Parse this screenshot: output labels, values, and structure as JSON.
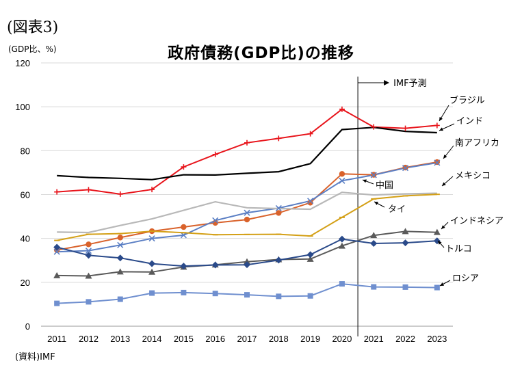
{
  "figure_label": "(図表3)",
  "unit_label": "(GDP比、%)",
  "source_label": "(資料)IMF",
  "chart_data": {
    "type": "line",
    "title": "政府債務(GDP比)の推移",
    "xlabel": "",
    "ylabel": "(GDP比、%)",
    "ylim": [
      0,
      120
    ],
    "yticks": [
      0,
      20,
      40,
      60,
      80,
      100,
      120
    ],
    "grid": true,
    "legend": "inline labels",
    "categories": [
      "2011",
      "2012",
      "2013",
      "2014",
      "2015",
      "2016",
      "2017",
      "2018",
      "2019",
      "2020",
      "2021",
      "2022",
      "2023"
    ],
    "forecast": {
      "start_after": "2020",
      "label": "IMF予測"
    },
    "series": [
      {
        "name": "ブラジル",
        "color": "#e8141b",
        "marker": "plus",
        "values": [
          61.2,
          62.2,
          60.2,
          62.3,
          72.6,
          78.3,
          83.6,
          85.6,
          87.7,
          98.9,
          90.8,
          90.2,
          91.5
        ]
      },
      {
        "name": "インド",
        "color": "#000000",
        "marker": "none",
        "values": [
          68.6,
          67.8,
          67.4,
          66.8,
          69.0,
          68.9,
          69.7,
          70.4,
          74.1,
          89.6,
          90.6,
          88.8,
          88.2
        ]
      },
      {
        "name": "南アフリカ",
        "color": "#d9622b",
        "marker": "circle",
        "values": [
          34.7,
          37.3,
          40.4,
          43.3,
          45.2,
          47.1,
          48.6,
          51.6,
          56.3,
          69.4,
          69.0,
          72.3,
          74.8
        ]
      },
      {
        "name": "中国",
        "color": "#5b7fc4",
        "marker": "cross",
        "values": [
          33.9,
          34.4,
          37.0,
          40.0,
          41.5,
          48.2,
          51.7,
          53.8,
          57.1,
          66.3,
          68.9,
          72.1,
          74.5
        ]
      },
      {
        "name": "メキシコ",
        "color": "#b8b8b8",
        "marker": "none",
        "values": [
          42.9,
          42.7,
          45.9,
          48.9,
          52.8,
          56.7,
          54.0,
          53.6,
          53.3,
          61.0,
          59.8,
          60.3,
          60.6
        ]
      },
      {
        "name": "タイ",
        "color": "#d4a017",
        "marker": "dash",
        "values": [
          39.1,
          41.9,
          42.2,
          43.3,
          42.6,
          41.7,
          41.8,
          41.9,
          41.1,
          49.6,
          58.0,
          59.4,
          60.1
        ]
      },
      {
        "name": "インドネシア",
        "color": "#5a5a5a",
        "marker": "triangle",
        "values": [
          23.1,
          22.9,
          24.8,
          24.7,
          27.0,
          28.0,
          29.4,
          30.4,
          30.6,
          36.6,
          41.4,
          43.2,
          42.8
        ]
      },
      {
        "name": "トルコ",
        "color": "#2a4a8a",
        "marker": "diamond",
        "values": [
          36.0,
          32.3,
          31.1,
          28.5,
          27.4,
          27.9,
          28.0,
          30.1,
          32.6,
          39.7,
          37.7,
          38.0,
          38.9
        ]
      },
      {
        "name": "ロシア",
        "color": "#6f8fcf",
        "marker": "square",
        "values": [
          10.4,
          11.1,
          12.3,
          15.1,
          15.3,
          14.9,
          14.3,
          13.6,
          13.8,
          19.3,
          17.9,
          17.8,
          17.6
        ]
      }
    ]
  }
}
